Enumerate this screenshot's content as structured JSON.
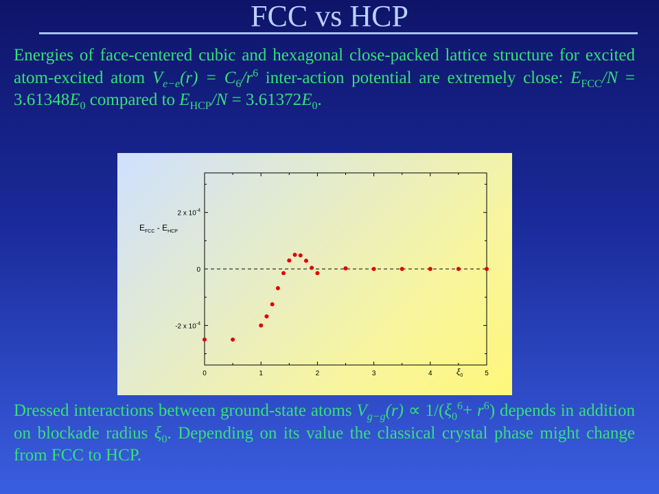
{
  "slide": {
    "title": "FCC vs HCP",
    "paragraph_top": [
      {
        "t": "Energies of face-centered cubic and hexagonal close-packed lattice structure for excited atom-excited atom "
      },
      {
        "t": "V",
        "m": true
      },
      {
        "t": "e−e",
        "m": true,
        "sub": true
      },
      {
        "t": "(r) = C",
        "m": true
      },
      {
        "t": "6",
        "sub": true
      },
      {
        "t": "/r",
        "m": true
      },
      {
        "t": "6",
        "sup": true
      },
      {
        "t": " inter-action potential are extremely close: "
      },
      {
        "t": "E",
        "m": true
      },
      {
        "t": "FCC",
        "sub": true
      },
      {
        "t": "/N",
        "m": true
      },
      {
        "t": " = 3.61348"
      },
      {
        "t": "E",
        "m": true
      },
      {
        "t": "0",
        "sub": true
      },
      {
        "t": " compared to "
      },
      {
        "t": "E",
        "m": true
      },
      {
        "t": "HCP",
        "sub": true
      },
      {
        "t": "/N",
        "m": true
      },
      {
        "t": " = 3.61372"
      },
      {
        "t": "E",
        "m": true
      },
      {
        "t": "0",
        "sub": true
      },
      {
        "t": "."
      }
    ],
    "paragraph_bottom": [
      {
        "t": "Dressed interactions between ground-state atoms "
      },
      {
        "t": "V",
        "m": true
      },
      {
        "t": "g−g",
        "m": true,
        "sub": true
      },
      {
        "t": "(r)",
        "m": true
      },
      {
        "t": " ∝ 1/("
      },
      {
        "t": "ξ",
        "m": true
      },
      {
        "t": "0",
        "sub": true
      },
      {
        "t": "6",
        "sup": true
      },
      {
        "t": "+ "
      },
      {
        "t": "r",
        "m": true
      },
      {
        "t": "6",
        "sup": true
      },
      {
        "t": ")"
      },
      {
        "t": " depends in addition on blockade radius "
      },
      {
        "t": "ξ",
        "m": true
      },
      {
        "t": "0",
        "sub": true
      },
      {
        "t": ". Depending on its value the classical crystal phase might change from FCC to HCP."
      }
    ]
  },
  "chart_data": {
    "type": "scatter",
    "ylabel_main": "E",
    "ylabel_sub1": "FCC",
    "ylabel_mid": " - E",
    "ylabel_sub2": "HCP",
    "xlabel_main": "ξ",
    "xlabel_sub": "0",
    "xlim": [
      0,
      5
    ],
    "ylim": [
      -0.00034,
      0.00034
    ],
    "xticks": [
      0,
      1,
      2,
      3,
      4,
      5
    ],
    "xtick_labels": [
      "0",
      "1",
      "2",
      "3",
      "4",
      "5"
    ],
    "yticks": [
      -0.0002,
      0,
      0.0002
    ],
    "ytick_labels": [
      {
        "mantissa": "-2 x 10",
        "exp": "-4"
      },
      {
        "mantissa": "0",
        "exp": ""
      },
      {
        "mantissa": "2 x 10",
        "exp": "-4"
      }
    ],
    "zero_line": "dashed",
    "marker_color": "#e00000",
    "series": [
      {
        "x": [
          0.0,
          0.5,
          1.0,
          1.1,
          1.2,
          1.3,
          1.4,
          1.5,
          1.6,
          1.7,
          1.8,
          1.9,
          2.0,
          2.5,
          3.0,
          3.5,
          4.0,
          4.5,
          5.0
        ],
        "y": [
          -0.00025,
          -0.00025,
          -0.0002,
          -0.000168,
          -0.000125,
          -6.8e-05,
          -1.5e-05,
          3e-05,
          5e-05,
          4.8e-05,
          2.9e-05,
          4e-06,
          -1.5e-05,
          2e-06,
          0.0,
          0.0,
          0.0,
          0.0,
          0.0
        ]
      }
    ]
  }
}
